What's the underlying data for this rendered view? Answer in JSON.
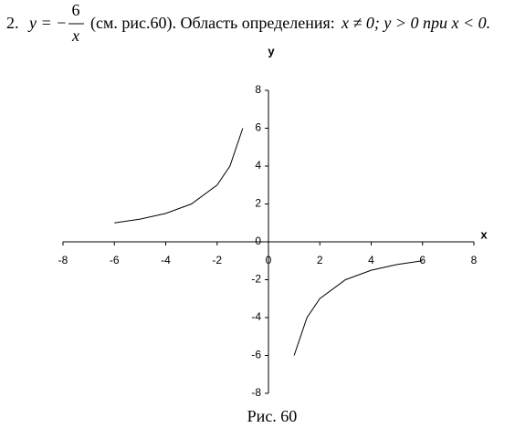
{
  "header": {
    "number": "2.",
    "formula_lhs": "y = −",
    "numerator": "6",
    "denominator": "x",
    "text": "(см. рис.60). Область определения:",
    "condition": "x ≠ 0; y > 0 при x < 0."
  },
  "chart_data": {
    "type": "line",
    "x": [
      -6,
      -5,
      -4,
      -3,
      -2,
      -1.5,
      -1,
      0,
      1,
      1.5,
      2,
      3,
      4,
      5,
      6
    ],
    "series": [
      {
        "color": "#000000",
        "values": [
          1,
          1.2,
          1.5,
          2,
          3,
          4,
          6,
          null,
          -6,
          -4,
          -3,
          -2,
          -1.5,
          -1.2,
          -1
        ]
      }
    ],
    "xlim": [
      -8,
      8
    ],
    "ylim": [
      -8,
      8
    ],
    "xticks": [
      -8,
      -6,
      -4,
      -2,
      0,
      2,
      4,
      6,
      8
    ],
    "yticks": [
      -8,
      -6,
      -4,
      -2,
      0,
      2,
      4,
      6,
      8
    ],
    "x_label": "x",
    "y_label": "y",
    "grid": false
  },
  "caption": "Рис. 60"
}
